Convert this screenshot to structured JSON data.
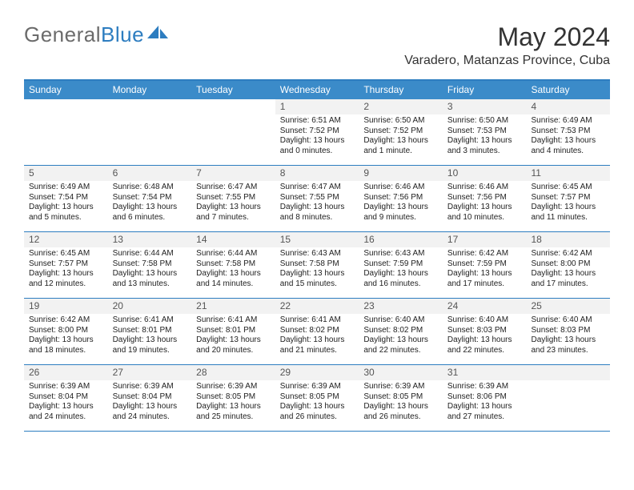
{
  "logo": {
    "text_gray": "General",
    "text_blue": "Blue"
  },
  "title": "May 2024",
  "location": "Varadero, Matanzas Province, Cuba",
  "colors": {
    "header_bg": "#3b8bc9",
    "border": "#2d7dc0",
    "daynum_bg": "#f2f2f2",
    "text": "#222222",
    "title_text": "#333333",
    "logo_gray": "#6b6b6b",
    "logo_blue": "#2d7dc0"
  },
  "day_headers": [
    "Sunday",
    "Monday",
    "Tuesday",
    "Wednesday",
    "Thursday",
    "Friday",
    "Saturday"
  ],
  "weeks": [
    [
      {
        "num": "",
        "sunrise": "",
        "sunset": "",
        "daylight": ""
      },
      {
        "num": "",
        "sunrise": "",
        "sunset": "",
        "daylight": ""
      },
      {
        "num": "",
        "sunrise": "",
        "sunset": "",
        "daylight": ""
      },
      {
        "num": "1",
        "sunrise": "Sunrise: 6:51 AM",
        "sunset": "Sunset: 7:52 PM",
        "daylight": "Daylight: 13 hours and 0 minutes."
      },
      {
        "num": "2",
        "sunrise": "Sunrise: 6:50 AM",
        "sunset": "Sunset: 7:52 PM",
        "daylight": "Daylight: 13 hours and 1 minute."
      },
      {
        "num": "3",
        "sunrise": "Sunrise: 6:50 AM",
        "sunset": "Sunset: 7:53 PM",
        "daylight": "Daylight: 13 hours and 3 minutes."
      },
      {
        "num": "4",
        "sunrise": "Sunrise: 6:49 AM",
        "sunset": "Sunset: 7:53 PM",
        "daylight": "Daylight: 13 hours and 4 minutes."
      }
    ],
    [
      {
        "num": "5",
        "sunrise": "Sunrise: 6:49 AM",
        "sunset": "Sunset: 7:54 PM",
        "daylight": "Daylight: 13 hours and 5 minutes."
      },
      {
        "num": "6",
        "sunrise": "Sunrise: 6:48 AM",
        "sunset": "Sunset: 7:54 PM",
        "daylight": "Daylight: 13 hours and 6 minutes."
      },
      {
        "num": "7",
        "sunrise": "Sunrise: 6:47 AM",
        "sunset": "Sunset: 7:55 PM",
        "daylight": "Daylight: 13 hours and 7 minutes."
      },
      {
        "num": "8",
        "sunrise": "Sunrise: 6:47 AM",
        "sunset": "Sunset: 7:55 PM",
        "daylight": "Daylight: 13 hours and 8 minutes."
      },
      {
        "num": "9",
        "sunrise": "Sunrise: 6:46 AM",
        "sunset": "Sunset: 7:56 PM",
        "daylight": "Daylight: 13 hours and 9 minutes."
      },
      {
        "num": "10",
        "sunrise": "Sunrise: 6:46 AM",
        "sunset": "Sunset: 7:56 PM",
        "daylight": "Daylight: 13 hours and 10 minutes."
      },
      {
        "num": "11",
        "sunrise": "Sunrise: 6:45 AM",
        "sunset": "Sunset: 7:57 PM",
        "daylight": "Daylight: 13 hours and 11 minutes."
      }
    ],
    [
      {
        "num": "12",
        "sunrise": "Sunrise: 6:45 AM",
        "sunset": "Sunset: 7:57 PM",
        "daylight": "Daylight: 13 hours and 12 minutes."
      },
      {
        "num": "13",
        "sunrise": "Sunrise: 6:44 AM",
        "sunset": "Sunset: 7:58 PM",
        "daylight": "Daylight: 13 hours and 13 minutes."
      },
      {
        "num": "14",
        "sunrise": "Sunrise: 6:44 AM",
        "sunset": "Sunset: 7:58 PM",
        "daylight": "Daylight: 13 hours and 14 minutes."
      },
      {
        "num": "15",
        "sunrise": "Sunrise: 6:43 AM",
        "sunset": "Sunset: 7:58 PM",
        "daylight": "Daylight: 13 hours and 15 minutes."
      },
      {
        "num": "16",
        "sunrise": "Sunrise: 6:43 AM",
        "sunset": "Sunset: 7:59 PM",
        "daylight": "Daylight: 13 hours and 16 minutes."
      },
      {
        "num": "17",
        "sunrise": "Sunrise: 6:42 AM",
        "sunset": "Sunset: 7:59 PM",
        "daylight": "Daylight: 13 hours and 17 minutes."
      },
      {
        "num": "18",
        "sunrise": "Sunrise: 6:42 AM",
        "sunset": "Sunset: 8:00 PM",
        "daylight": "Daylight: 13 hours and 17 minutes."
      }
    ],
    [
      {
        "num": "19",
        "sunrise": "Sunrise: 6:42 AM",
        "sunset": "Sunset: 8:00 PM",
        "daylight": "Daylight: 13 hours and 18 minutes."
      },
      {
        "num": "20",
        "sunrise": "Sunrise: 6:41 AM",
        "sunset": "Sunset: 8:01 PM",
        "daylight": "Daylight: 13 hours and 19 minutes."
      },
      {
        "num": "21",
        "sunrise": "Sunrise: 6:41 AM",
        "sunset": "Sunset: 8:01 PM",
        "daylight": "Daylight: 13 hours and 20 minutes."
      },
      {
        "num": "22",
        "sunrise": "Sunrise: 6:41 AM",
        "sunset": "Sunset: 8:02 PM",
        "daylight": "Daylight: 13 hours and 21 minutes."
      },
      {
        "num": "23",
        "sunrise": "Sunrise: 6:40 AM",
        "sunset": "Sunset: 8:02 PM",
        "daylight": "Daylight: 13 hours and 22 minutes."
      },
      {
        "num": "24",
        "sunrise": "Sunrise: 6:40 AM",
        "sunset": "Sunset: 8:03 PM",
        "daylight": "Daylight: 13 hours and 22 minutes."
      },
      {
        "num": "25",
        "sunrise": "Sunrise: 6:40 AM",
        "sunset": "Sunset: 8:03 PM",
        "daylight": "Daylight: 13 hours and 23 minutes."
      }
    ],
    [
      {
        "num": "26",
        "sunrise": "Sunrise: 6:39 AM",
        "sunset": "Sunset: 8:04 PM",
        "daylight": "Daylight: 13 hours and 24 minutes."
      },
      {
        "num": "27",
        "sunrise": "Sunrise: 6:39 AM",
        "sunset": "Sunset: 8:04 PM",
        "daylight": "Daylight: 13 hours and 24 minutes."
      },
      {
        "num": "28",
        "sunrise": "Sunrise: 6:39 AM",
        "sunset": "Sunset: 8:05 PM",
        "daylight": "Daylight: 13 hours and 25 minutes."
      },
      {
        "num": "29",
        "sunrise": "Sunrise: 6:39 AM",
        "sunset": "Sunset: 8:05 PM",
        "daylight": "Daylight: 13 hours and 26 minutes."
      },
      {
        "num": "30",
        "sunrise": "Sunrise: 6:39 AM",
        "sunset": "Sunset: 8:05 PM",
        "daylight": "Daylight: 13 hours and 26 minutes."
      },
      {
        "num": "31",
        "sunrise": "Sunrise: 6:39 AM",
        "sunset": "Sunset: 8:06 PM",
        "daylight": "Daylight: 13 hours and 27 minutes."
      },
      {
        "num": "",
        "sunrise": "",
        "sunset": "",
        "daylight": ""
      }
    ]
  ]
}
